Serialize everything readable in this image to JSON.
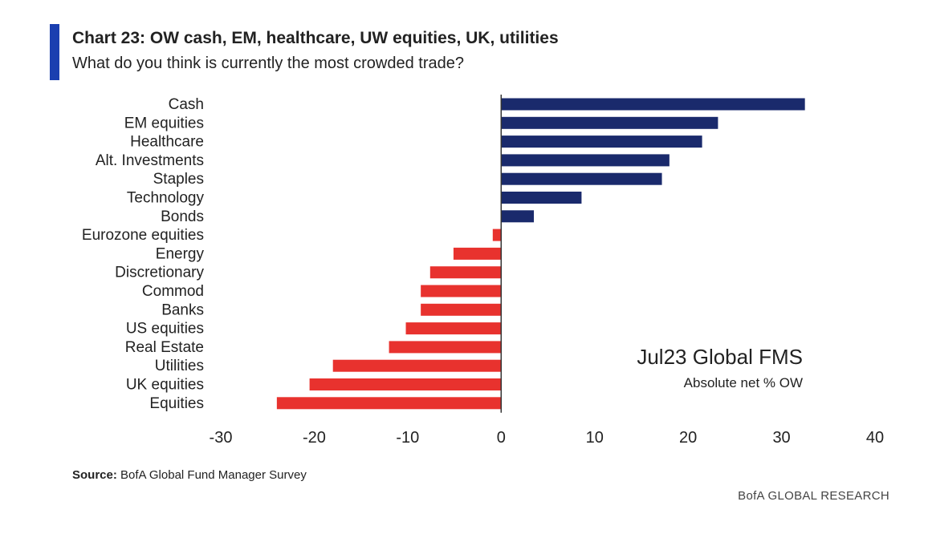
{
  "chart_data": {
    "type": "bar",
    "orientation": "horizontal",
    "title": "Chart 23: OW cash, EM, healthcare, UW equities, UK, utilities",
    "subtitle": "What do you think is currently the most crowded trade?",
    "categories": [
      "Cash",
      "EM equities",
      "Healthcare",
      "Alt. Investments",
      "Staples",
      "Technology",
      "Bonds",
      "Eurozone equities",
      "Energy",
      "Discretionary",
      "Commod",
      "Banks",
      "US equities",
      "Real Estate",
      "Utilities",
      "UK equities",
      "Equities"
    ],
    "values": [
      32.5,
      23.2,
      21.5,
      18.0,
      17.2,
      8.6,
      3.5,
      -0.9,
      -5.1,
      -7.6,
      -8.6,
      -8.6,
      -10.2,
      -12.0,
      -18.0,
      -20.5,
      -24.0
    ],
    "xlim": [
      -30,
      40
    ],
    "xticks": [
      -30,
      -20,
      -10,
      0,
      10,
      20,
      30,
      40
    ],
    "annotation": {
      "title": "Jul23 Global FMS",
      "subtitle": "Absolute net % OW"
    },
    "colors": {
      "positive": "#1a2a6c",
      "negative": "#e8322e"
    }
  },
  "footer": {
    "source_label": "Source:",
    "source_text": "BofA Global Fund Manager Survey",
    "brand": "BofA GLOBAL RESEARCH"
  }
}
